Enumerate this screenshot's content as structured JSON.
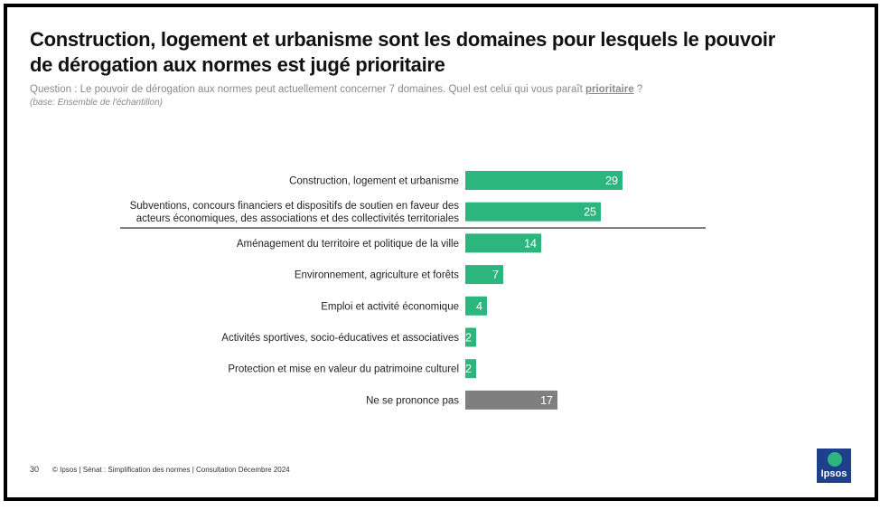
{
  "title_line1": "Construction, logement et urbanisme sont les domaines pour lesquels le pouvoir",
  "title_line2": "de dérogation aux normes est jugé prioritaire",
  "question_text": "Question : Le pouvoir de dérogation aux normes peut actuellement concerner 7 domaines. Quel est celui qui vous paraît",
  "question_key": "prioritaire",
  "question_end": " ?",
  "base_text": "(base: Ensemble de l'échantillon)",
  "footer_page": "30",
  "footer_text": "© Ipsos | Sénat : Simplification des normes | Consultation Décembre 2024",
  "logo_text": "Ipsos",
  "colors": {
    "bar": "#2cb67d",
    "bar_neutral": "#7f7f7f",
    "logo_bg": "#1f3f8c"
  },
  "chart_data": {
    "type": "bar",
    "orientation": "horizontal",
    "title": "Construction, logement et urbanisme sont les domaines pour lesquels le pouvoir de dérogation aux normes est jugé prioritaire",
    "categories": [
      [
        "Construction, logement et urbanisme"
      ],
      [
        "Subventions, concours financiers et dispositifs de soutien en faveur des",
        "acteurs économiques, des associations et des collectivités territoriales"
      ],
      [
        "Aménagement du territoire et politique de la ville"
      ],
      [
        "Environnement, agriculture et forêts"
      ],
      [
        "Emploi et activité économique"
      ],
      [
        "Activités sportives, socio-éducatives et associatives"
      ],
      [
        "Protection et mise en valeur du patrimoine culturel"
      ],
      [
        "Ne se prononce pas"
      ]
    ],
    "values": [
      29,
      25,
      14,
      7,
      4,
      2,
      2,
      17
    ],
    "neutral_index": 7,
    "separator_after_index": 1,
    "xlim": [
      0,
      45
    ],
    "xlabel": "",
    "ylabel": ""
  }
}
